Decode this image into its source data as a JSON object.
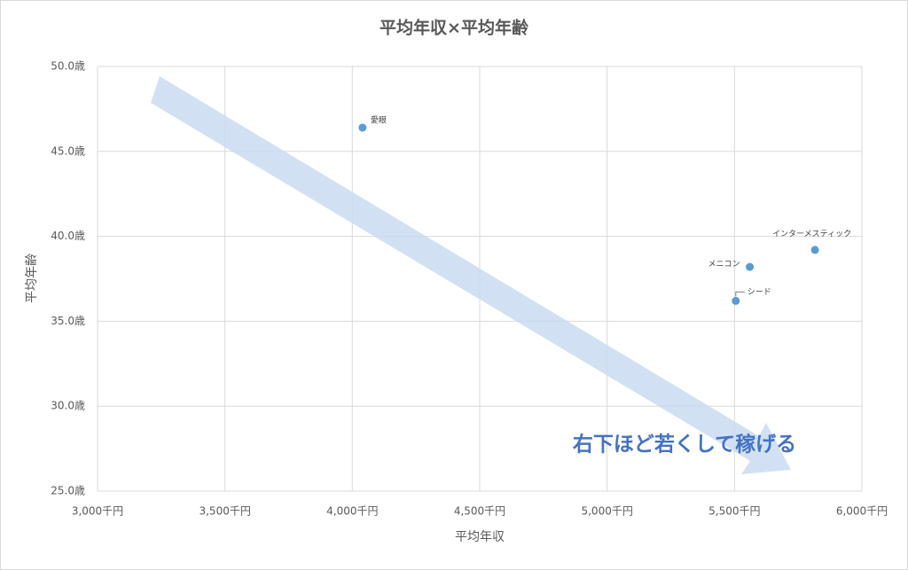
{
  "chart_data": {
    "type": "scatter",
    "title": "平均年収×平均年齢",
    "x_label": "平均年収",
    "y_label": "平均年齢",
    "annotation": "右下ほど若くして稼げる",
    "point_labels": [
      "愛眼",
      "インターメスティック",
      "メニコン",
      "シード"
    ],
    "x": [
      4040,
      5816,
      5560,
      5505
    ],
    "values": [
      46.4,
      39.2,
      38.2,
      36.2
    ],
    "color": "#5b9bd5",
    "xlim": [
      3000,
      6000
    ],
    "xticks": [
      {
        "value": 3000,
        "label": "3,000千円"
      },
      {
        "value": 3500,
        "label": "3,500千円"
      },
      {
        "value": 4000,
        "label": "4,000千円"
      },
      {
        "value": 4500,
        "label": "4,500千円"
      },
      {
        "value": 5000,
        "label": "5,000千円"
      },
      {
        "value": 5500,
        "label": "5,500千円"
      },
      {
        "value": 6000,
        "label": "6,000千円"
      }
    ],
    "ylim": [
      25,
      50
    ],
    "yticks": [
      {
        "value": 25,
        "label": "25.0歳"
      },
      {
        "value": 30,
        "label": "30.0歳"
      },
      {
        "value": 35,
        "label": "35.0歳"
      },
      {
        "value": 40,
        "label": "40.0歳"
      },
      {
        "value": 45,
        "label": "45.0歳"
      },
      {
        "value": 50,
        "label": "50.0歳"
      }
    ],
    "grid": true
  }
}
